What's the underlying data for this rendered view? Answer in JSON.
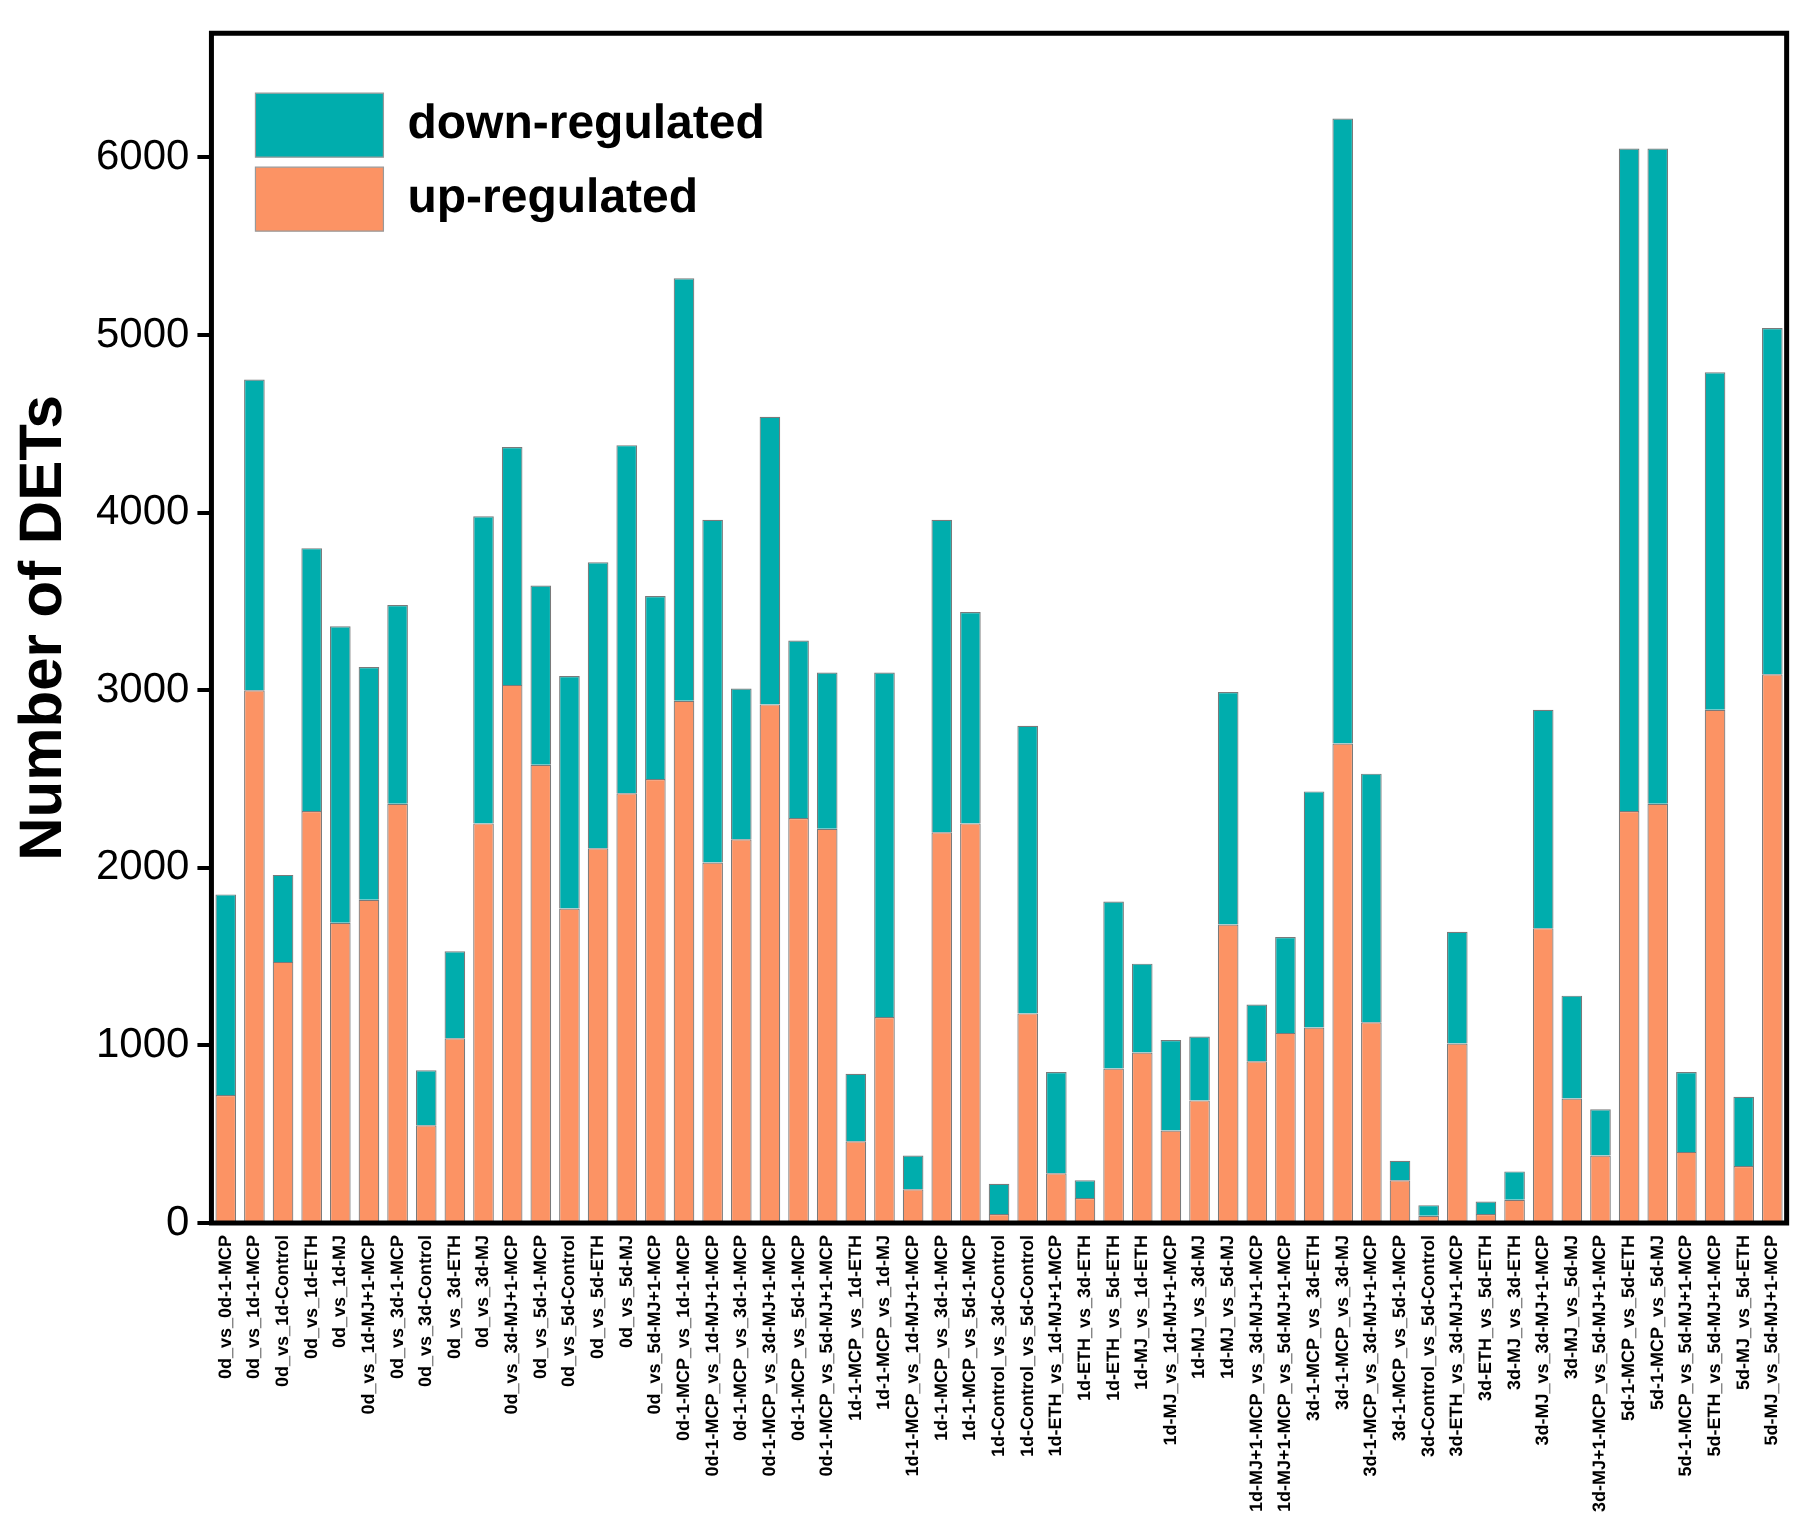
{
  "chart_data": {
    "type": "bar",
    "stacked": true,
    "ylabel": "Number of DETs",
    "legend": "top left",
    "grid": false,
    "categories": [
      "0d_vs_0d-1-MCP",
      "0d_vs_1d-1-MCP",
      "0d_vs_1d-Control",
      "0d_vs_1d-ETH",
      "0d_vs_1d-MJ",
      "0d_vs_1d-MJ+1-MCP",
      "0d_vs_3d-1-MCP",
      "0d_vs_3d-Control",
      "0d_vs_3d-ETH",
      "0d_vs_3d-MJ",
      "0d_vs_3d-MJ+1-MCP",
      "0d_vs_5d-1-MCP",
      "0d_vs_5d-Control",
      "0d_vs_5d-ETH",
      "0d_vs_5d-MJ",
      "0d_vs_5d-MJ+1-MCP",
      "0d-1-MCP_vs_1d-1-MCP",
      "0d-1-MCP_vs_1d-MJ+1-MCP",
      "0d-1-MCP_vs_3d-1-MCP",
      "0d-1-MCP_vs_3d-MJ+1-MCP",
      "0d-1-MCP_vs_5d-1-MCP",
      "0d-1-MCP_vs_5d-MJ+1-MCP",
      "1d-1-MCP_vs_1d-ETH",
      "1d-1-MCP_vs_1d-MJ",
      "1d-1-MCP_vs_1d-MJ+1-MCP",
      "1d-1-MCP_vs_3d-1-MCP",
      "1d-1-MCP_vs_5d-1-MCP",
      "1d-Control_vs_3d-Control",
      "1d-Control_vs_5d-Control",
      "1d-ETH_vs_1d-MJ+1-MCP",
      "1d-ETH_vs_3d-ETH",
      "1d-ETH_vs_5d-ETH",
      "1d-MJ_vs_1d-ETH",
      "1d-MJ_vs_1d-MJ+1-MCP",
      "1d-MJ_vs_3d-MJ",
      "1d-MJ_vs_5d-MJ",
      "1d-MJ+1-MCP_vs_3d-MJ+1-MCP",
      "1d-MJ+1-MCP_vs_5d-MJ+1-MCP",
      "3d-1-MCP_vs_3d-ETH",
      "3d-1-MCP_vs_3d-MJ",
      "3d-1-MCP_vs_3d-MJ+1-MCP",
      "3d-1-MCP_vs_5d-1-MCP",
      "3d-Control_vs_5d-Control",
      "3d-ETH_vs_3d-MJ+1-MCP",
      "3d-ETH_vs_5d-ETH",
      "3d-MJ_vs_3d-ETH",
      "3d-MJ_vs_3d-MJ+1-MCP",
      "3d-MJ_vs_5d-MJ",
      "3d-MJ+1-MCP_vs_5d-MJ+1-MCP",
      "5d-1-MCP_vs_5d-ETH",
      "5d-1-MCP_vs_5d-MJ",
      "5d-1-MCP_vs_5d-MJ+1-MCP",
      "5d-ETH_vs_5d-MJ+1-MCP",
      "5d-MJ_vs_5d-ETH",
      "5d-MJ_vs_5d-MJ+1-MCP"
    ],
    "series": [
      {
        "name": "up-regulated",
        "color": "#fc9364",
        "values": [
          720,
          3000,
          1470,
          2320,
          1690,
          1820,
          2360,
          550,
          1040,
          2250,
          3030,
          2580,
          1770,
          2110,
          2420,
          2500,
          2940,
          2030,
          2160,
          2920,
          2280,
          2220,
          460,
          1160,
          190,
          2200,
          2250,
          50,
          1180,
          280,
          140,
          870,
          960,
          520,
          690,
          1680,
          910,
          1070,
          1100,
          2700,
          1130,
          240,
          40,
          1010,
          50,
          130,
          1660,
          700,
          380,
          2320,
          2360,
          400,
          2890,
          320,
          3090
        ]
      },
      {
        "name": "down-regulated",
        "color": "#00adad",
        "values": [
          1130,
          1750,
          490,
          1480,
          1670,
          1310,
          1120,
          310,
          490,
          1730,
          1340,
          1010,
          1310,
          1610,
          1960,
          1030,
          2380,
          1930,
          850,
          1620,
          1000,
          880,
          380,
          1940,
          190,
          1760,
          1190,
          170,
          1620,
          570,
          100,
          940,
          500,
          510,
          360,
          1310,
          320,
          540,
          1330,
          3520,
          1400,
          110,
          60,
          630,
          70,
          160,
          1230,
          580,
          260,
          3730,
          3690,
          450,
          1900,
          390,
          1950
        ]
      }
    ],
    "ylim": [
      0,
      6700
    ],
    "yticks": [
      0,
      1000,
      2000,
      3000,
      4000,
      5000,
      6000
    ]
  }
}
